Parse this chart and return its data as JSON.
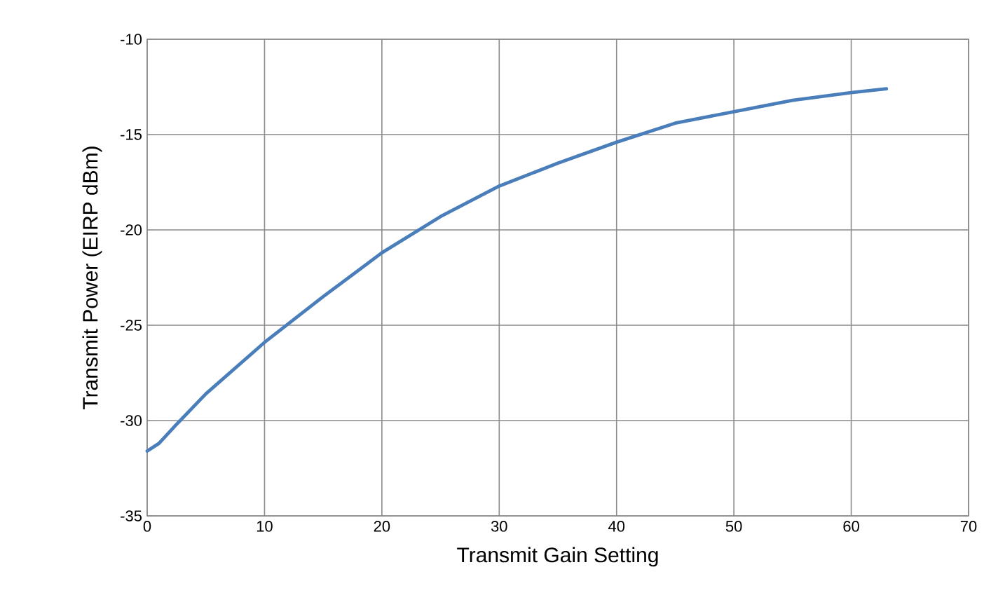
{
  "chart_data": {
    "type": "line",
    "xlabel": "Transmit Gain Setting",
    "ylabel": "Transmit Power (EIRP dBm)",
    "xlim": [
      0,
      70
    ],
    "ylim": [
      -35,
      -10
    ],
    "xticks": [
      0,
      10,
      20,
      30,
      40,
      50,
      60,
      70
    ],
    "yticks": [
      -35,
      -30,
      -25,
      -20,
      -15,
      -10
    ],
    "grid": true,
    "series": [
      {
        "color": "#4a7ebb",
        "x": [
          0,
          1,
          2.5,
          5,
          10,
          15,
          20,
          25,
          30,
          35,
          40,
          45,
          50,
          55,
          60,
          63
        ],
        "values": [
          -31.6,
          -31.2,
          -30.2,
          -28.6,
          -25.9,
          -23.5,
          -21.2,
          -19.3,
          -17.7,
          -16.5,
          -15.4,
          -14.4,
          -13.8,
          -13.2,
          -12.8,
          -12.6
        ]
      }
    ]
  }
}
